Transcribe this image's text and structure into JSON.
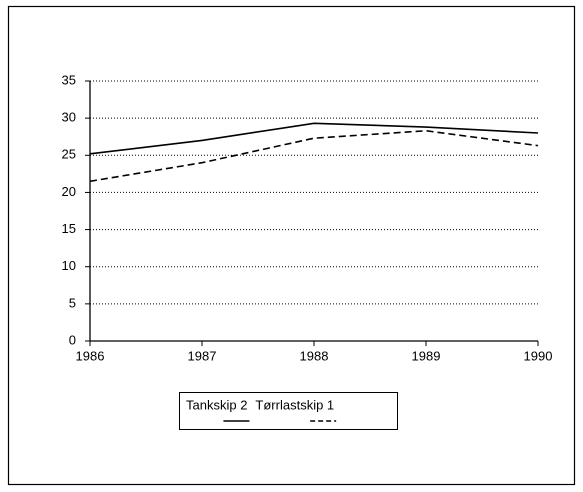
{
  "chart_data": {
    "type": "line",
    "categories": [
      "1986",
      "1987",
      "1988",
      "1989",
      "1990"
    ],
    "series": [
      {
        "name": "Tankskip 2",
        "color": "#000000",
        "dash": false,
        "values": [
          25.2,
          27.0,
          29.3,
          28.8,
          28.0
        ]
      },
      {
        "name": "Tørrlastskip 1",
        "color": "#000000",
        "dash": true,
        "values": [
          21.5,
          24.0,
          27.3,
          28.3,
          26.3
        ]
      }
    ],
    "ylim": [
      0,
      35
    ],
    "yticks": [
      0,
      5,
      10,
      15,
      20,
      25,
      30,
      35
    ],
    "grid": true,
    "legend": "bottom"
  }
}
